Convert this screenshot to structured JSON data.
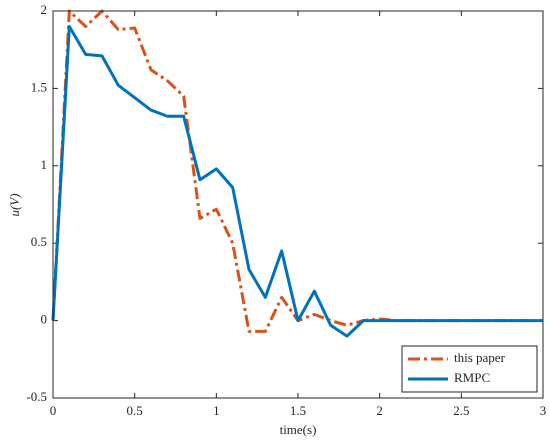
{
  "chart_data": {
    "type": "line",
    "xlabel": "time(s)",
    "ylabel": "u(V)",
    "x": [
      0,
      0.1,
      0.2,
      0.3,
      0.4,
      0.5,
      0.6,
      0.7,
      0.8,
      0.9,
      1.0,
      1.1,
      1.2,
      1.3,
      1.4,
      1.5,
      1.6,
      1.7,
      1.8,
      1.9,
      2.0,
      2.1,
      2.2,
      2.3,
      2.4,
      2.5,
      2.6,
      2.7,
      2.8,
      2.9,
      3.0
    ],
    "series": [
      {
        "name": "this paper",
        "color": "#d95319",
        "linestyle": "dashdot",
        "values": [
          0,
          2.0,
          1.9,
          2.0,
          1.88,
          1.89,
          1.62,
          1.55,
          1.45,
          0.66,
          0.72,
          0.5,
          -0.07,
          -0.07,
          0.15,
          0.0,
          0.04,
          0.0,
          -0.03,
          0.0,
          0.01,
          0,
          0,
          0,
          0,
          0,
          0,
          0,
          0,
          0,
          0
        ]
      },
      {
        "name": "RMPC",
        "color": "#0072bd",
        "linestyle": "solid",
        "values": [
          0,
          1.9,
          1.72,
          1.71,
          1.52,
          1.44,
          1.36,
          1.32,
          1.32,
          0.91,
          0.98,
          0.86,
          0.33,
          0.15,
          0.45,
          0.0,
          0.19,
          -0.03,
          -0.1,
          0.0,
          0,
          0,
          0,
          0,
          0,
          0,
          0,
          0,
          0,
          0,
          0
        ]
      }
    ],
    "xlim": [
      0,
      3
    ],
    "xticks": [
      0,
      0.5,
      1,
      1.5,
      2,
      2.5,
      3
    ],
    "ylim": [
      -0.5,
      2
    ],
    "yticks": [
      -0.5,
      0,
      0.5,
      1,
      1.5,
      2
    ],
    "legend": "lower right"
  }
}
